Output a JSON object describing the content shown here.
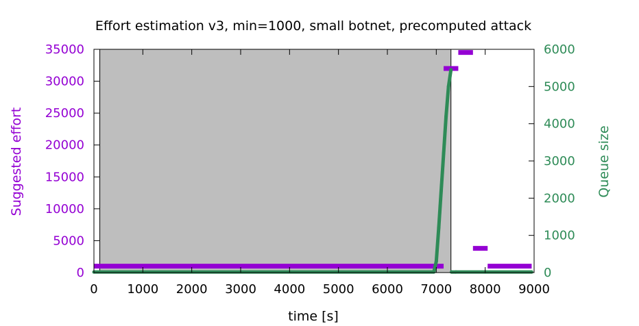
{
  "chart_data": {
    "type": "line",
    "title": "Effort estimation v3, min=1000, small botnet, precomputed attack",
    "xlabel": "time [s]",
    "ylabel_left": "Suggested effort",
    "ylabel_right": "Queue size",
    "xlim": [
      0,
      9000
    ],
    "ylim_left": [
      0,
      35000
    ],
    "ylim_right": [
      0,
      6000
    ],
    "x_ticks": [
      "0",
      "1000",
      "2000",
      "3000",
      "4000",
      "5000",
      "6000",
      "7000",
      "8000",
      "9000"
    ],
    "y_left_ticks": [
      "0",
      "5000",
      "10000",
      "15000",
      "20000",
      "25000",
      "30000",
      "35000"
    ],
    "y_right_ticks": [
      "0",
      "1000",
      "2000",
      "3000",
      "4000",
      "5000",
      "6000"
    ],
    "grid": false,
    "attack_region": {
      "x_start": 120,
      "x_end": 7300,
      "color": "#bebebe"
    },
    "series": [
      {
        "axis": "left",
        "color": "#9400d3",
        "segments": [
          {
            "x": [
              0,
              7150
            ],
            "y": [
              1000,
              1000
            ]
          },
          {
            "x": [
              7150,
              7450
            ],
            "y": [
              32000,
              32000
            ]
          },
          {
            "x": [
              7450,
              7750
            ],
            "y": [
              34500,
              34500
            ]
          },
          {
            "x": [
              7750,
              8050
            ],
            "y": [
              3800,
              3800
            ]
          },
          {
            "x": [
              8050,
              8950
            ],
            "y": [
              1000,
              1000
            ]
          }
        ]
      },
      {
        "axis": "right",
        "color": "#2e8b57",
        "points": {
          "x": [
            0,
            6950,
            7000,
            7050,
            7100,
            7150,
            7200,
            7250,
            7300,
            7310,
            7400,
            8000,
            8950
          ],
          "y": [
            15,
            15,
            300,
            1200,
            2200,
            3200,
            4200,
            5000,
            5450,
            15,
            15,
            15,
            15
          ]
        }
      }
    ]
  }
}
